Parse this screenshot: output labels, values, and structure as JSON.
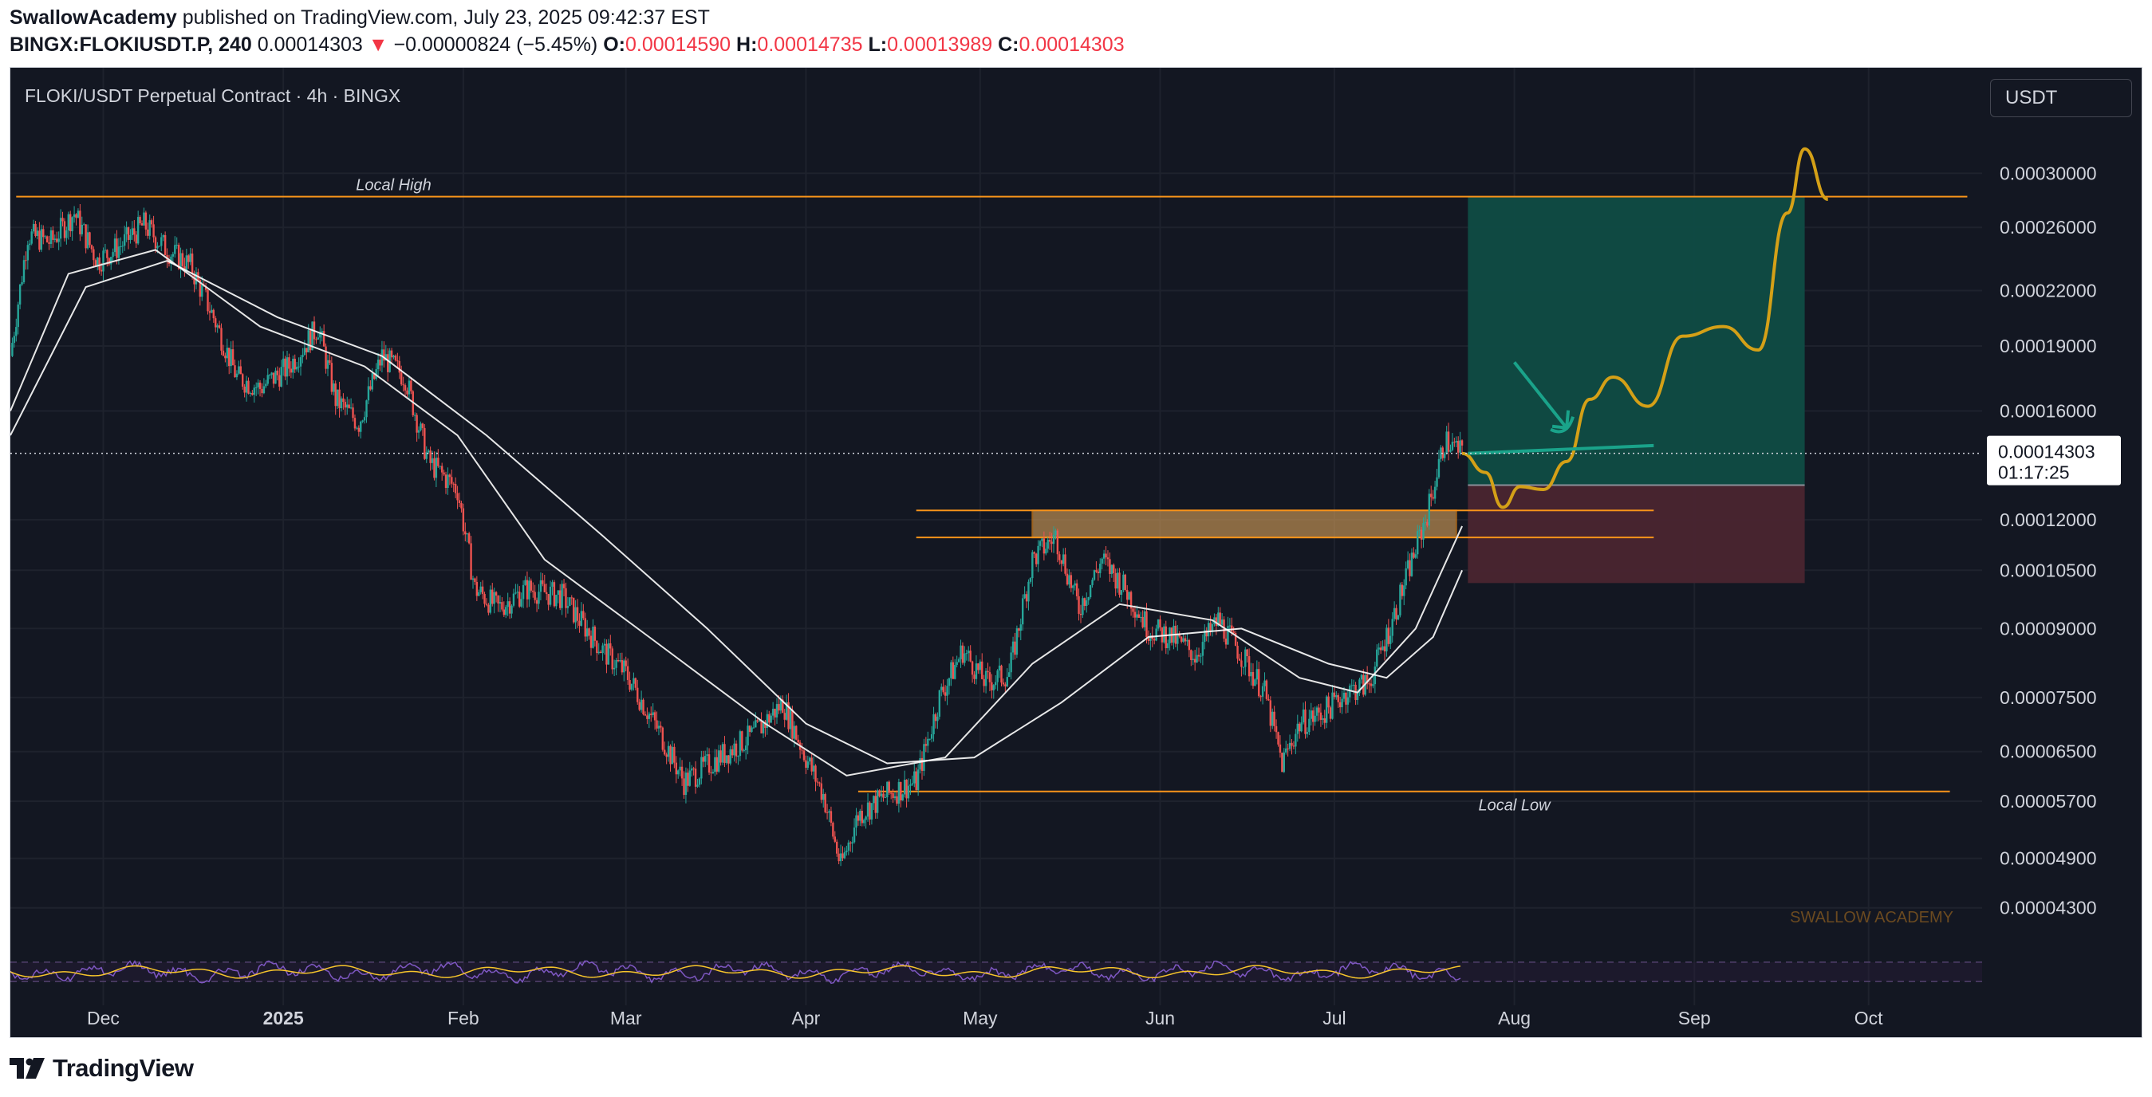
{
  "header": {
    "author": "SwallowAcademy",
    "published_text": "published on TradingView.com, July 23, 2025 09:42:37 EST",
    "symbol": "BINGX:FLOKIUSDT.P, 240",
    "last_price": "0.00014303",
    "change_arrow": "▼",
    "change_text": "−0.00000824 (−5.45%)",
    "o_label": "O:",
    "o_value": "0.00014590",
    "h_label": "H:",
    "h_value": "0.00014735",
    "l_label": "L:",
    "l_value": "0.00013989",
    "c_label": "C:",
    "c_value": "0.00014303"
  },
  "chart": {
    "symbol_title": "FLOKI/USDT Perpetual Contract · 4h · BINGX",
    "currency_button": "USDT",
    "watermark": "SWALLOW ACADEMY",
    "price_badge": "0.00014303",
    "countdown_badge": "01:17:25",
    "colors": {
      "background": "#131722",
      "grid": "#1e222d",
      "up": "#26a69a",
      "down": "#ef5350",
      "level": "#f7931a",
      "projection": "#d4a017",
      "target_zone": "#0f4c45",
      "stop_zone": "#4a2530",
      "arrow": "#1aa38a",
      "ma_fast": "#e6e6e6",
      "ma_slow": "#ffffff"
    }
  },
  "annotations": {
    "local_high": "Local High",
    "local_low": "Local Low"
  },
  "footer": {
    "brand": "TradingView",
    "logo_icon": "tradingview-logo-icon"
  },
  "chart_data": {
    "type": "candlestick",
    "x_axis_labels": [
      "Dec",
      "2025",
      "Feb",
      "Mar",
      "Apr",
      "May",
      "Jun",
      "Jul",
      "Aug",
      "Sep",
      "Oct"
    ],
    "y_axis_labels": [
      "0.00030000",
      "0.00026000",
      "0.00022000",
      "0.00019000",
      "0.00016000",
      "0.00012000",
      "0.00010500",
      "0.00009000",
      "0.00007500",
      "0.00006500",
      "0.00005700",
      "0.00004900",
      "0.00004300"
    ],
    "y_scale": "log",
    "ylim": [
      3.9e-05,
      0.000335
    ],
    "xlim": [
      "2024-11-15",
      "2025-10-20"
    ],
    "series": [
      {
        "name": "FLOKIUSDT.P",
        "type": "close",
        "points": [
          [
            "2024-11-15",
            0.000185
          ],
          [
            "2024-11-18",
            0.000255
          ],
          [
            "2024-11-22",
            0.00025
          ],
          [
            "2024-11-26",
            0.00027
          ],
          [
            "2024-11-30",
            0.000238
          ],
          [
            "2024-12-04",
            0.000248
          ],
          [
            "2024-12-08",
            0.000262
          ],
          [
            "2024-12-12",
            0.000245
          ],
          [
            "2024-12-16",
            0.000235
          ],
          [
            "2024-12-20",
            0.000205
          ],
          [
            "2024-12-24",
            0.000175
          ],
          [
            "2024-12-28",
            0.00017
          ],
          [
            "2025-01-02",
            0.00018
          ],
          [
            "2025-01-07",
            0.0002
          ],
          [
            "2025-01-10",
            0.000165
          ],
          [
            "2025-01-14",
            0.000155
          ],
          [
            "2025-01-18",
            0.000185
          ],
          [
            "2025-01-22",
            0.000175
          ],
          [
            "2025-01-26",
            0.00014
          ],
          [
            "2025-01-31",
            0.00013
          ],
          [
            "2025-02-03",
            0.0001
          ],
          [
            "2025-02-07",
            9.5e-05
          ],
          [
            "2025-02-12",
            0.0001
          ],
          [
            "2025-02-18",
            9.8e-05
          ],
          [
            "2025-02-25",
            8.5e-05
          ],
          [
            "2025-03-01",
            8e-05
          ],
          [
            "2025-03-07",
            6.8e-05
          ],
          [
            "2025-03-11",
            6e-05
          ],
          [
            "2025-03-17",
            6.4e-05
          ],
          [
            "2025-03-23",
            6.8e-05
          ],
          [
            "2025-03-28",
            7.4e-05
          ],
          [
            "2025-04-01",
            6.4e-05
          ],
          [
            "2025-04-04",
            5.8e-05
          ],
          [
            "2025-04-07",
            4.8e-05
          ],
          [
            "2025-04-10",
            5.5e-05
          ],
          [
            "2025-04-15",
            5.8e-05
          ],
          [
            "2025-04-20",
            6e-05
          ],
          [
            "2025-04-24",
            7.5e-05
          ],
          [
            "2025-04-28",
            8.5e-05
          ],
          [
            "2025-05-02",
            7.8e-05
          ],
          [
            "2025-05-06",
            8e-05
          ],
          [
            "2025-05-10",
            0.000108
          ],
          [
            "2025-05-14",
            0.000115
          ],
          [
            "2025-05-18",
            9.5e-05
          ],
          [
            "2025-05-22",
            0.000108
          ],
          [
            "2025-05-26",
            0.0001
          ],
          [
            "2025-05-30",
            9e-05
          ],
          [
            "2025-06-03",
            8.8e-05
          ],
          [
            "2025-06-07",
            8.4e-05
          ],
          [
            "2025-06-11",
            9.2e-05
          ],
          [
            "2025-06-15",
            8.4e-05
          ],
          [
            "2025-06-19",
            7.6e-05
          ],
          [
            "2025-06-22",
            6.3e-05
          ],
          [
            "2025-06-25",
            7e-05
          ],
          [
            "2025-06-29",
            7.2e-05
          ],
          [
            "2025-07-03",
            7.6e-05
          ],
          [
            "2025-07-07",
            7.8e-05
          ],
          [
            "2025-07-11",
            9.2e-05
          ],
          [
            "2025-07-14",
            0.000106
          ],
          [
            "2025-07-17",
            0.000122
          ],
          [
            "2025-07-20",
            0.000148
          ],
          [
            "2025-07-23",
            0.000143
          ]
        ]
      },
      {
        "name": "MA fast",
        "points": [
          [
            "2024-11-15",
            0.00016
          ],
          [
            "2024-11-25",
            0.00023
          ],
          [
            "2024-12-10",
            0.000245
          ],
          [
            "2024-12-28",
            0.0002
          ],
          [
            "2025-01-15",
            0.00018
          ],
          [
            "2025-01-31",
            0.00015
          ],
          [
            "2025-02-15",
            0.000108
          ],
          [
            "2025-03-05",
            8.8e-05
          ],
          [
            "2025-03-25",
            7e-05
          ],
          [
            "2025-04-08",
            6.1e-05
          ],
          [
            "2025-04-25",
            6.4e-05
          ],
          [
            "2025-05-10",
            8.2e-05
          ],
          [
            "2025-05-25",
            9.6e-05
          ],
          [
            "2025-06-10",
            9.2e-05
          ],
          [
            "2025-06-25",
            7.9e-05
          ],
          [
            "2025-07-05",
            7.6e-05
          ],
          [
            "2025-07-15",
            9e-05
          ],
          [
            "2025-07-23",
            0.000118
          ]
        ]
      },
      {
        "name": "MA slow",
        "points": [
          [
            "2024-11-15",
            0.00015
          ],
          [
            "2024-11-28",
            0.000222
          ],
          [
            "2024-12-12",
            0.000238
          ],
          [
            "2024-12-31",
            0.000205
          ],
          [
            "2025-01-18",
            0.000185
          ],
          [
            "2025-02-05",
            0.00015
          ],
          [
            "2025-02-25",
            0.000115
          ],
          [
            "2025-03-15",
            9e-05
          ],
          [
            "2025-04-01",
            7e-05
          ],
          [
            "2025-04-15",
            6.3e-05
          ],
          [
            "2025-04-30",
            6.4e-05
          ],
          [
            "2025-05-15",
            7.4e-05
          ],
          [
            "2025-05-30",
            8.8e-05
          ],
          [
            "2025-06-15",
            9e-05
          ],
          [
            "2025-06-30",
            8.2e-05
          ],
          [
            "2025-07-10",
            7.9e-05
          ],
          [
            "2025-07-18",
            8.8e-05
          ],
          [
            "2025-07-23",
            0.000105
          ]
        ]
      },
      {
        "name": "Projection",
        "points": [
          [
            "2025-07-23",
            0.000143
          ],
          [
            "2025-07-27",
            0.000136
          ],
          [
            "2025-07-30",
            0.000124
          ],
          [
            "2025-08-02",
            0.000131
          ],
          [
            "2025-08-06",
            0.00013
          ],
          [
            "2025-08-10",
            0.00014
          ],
          [
            "2025-08-14",
            0.000165
          ],
          [
            "2025-08-18",
            0.000175
          ],
          [
            "2025-08-24",
            0.000162
          ],
          [
            "2025-08-30",
            0.000195
          ],
          [
            "2025-09-06",
            0.0002
          ],
          [
            "2025-09-12",
            0.000188
          ],
          [
            "2025-09-17",
            0.00027
          ],
          [
            "2025-09-20",
            0.00032
          ],
          [
            "2025-09-24",
            0.00028
          ]
        ]
      }
    ],
    "levels": [
      {
        "label": "Local High",
        "price": 0.000282,
        "from": "2024-11-16",
        "to": "2025-10-18"
      },
      {
        "label": "Local Low",
        "price": 5.85e-05,
        "from": "2025-04-10",
        "to": "2025-10-15"
      },
      {
        "label": "Zone top",
        "price": 0.000123,
        "from": "2025-04-20",
        "to": "2025-08-25"
      },
      {
        "label": "Zone bottom",
        "price": 0.0001145,
        "from": "2025-04-20",
        "to": "2025-08-25"
      }
    ],
    "position": {
      "entry": 0.0001315,
      "target": 0.000282,
      "stop": 0.0001015,
      "from": "2025-07-24",
      "to": "2025-09-20"
    },
    "last_price": 0.00014303,
    "oscillator": {
      "range": [
        0,
        100
      ],
      "bands": [
        30,
        70
      ]
    },
    "grid": true
  }
}
